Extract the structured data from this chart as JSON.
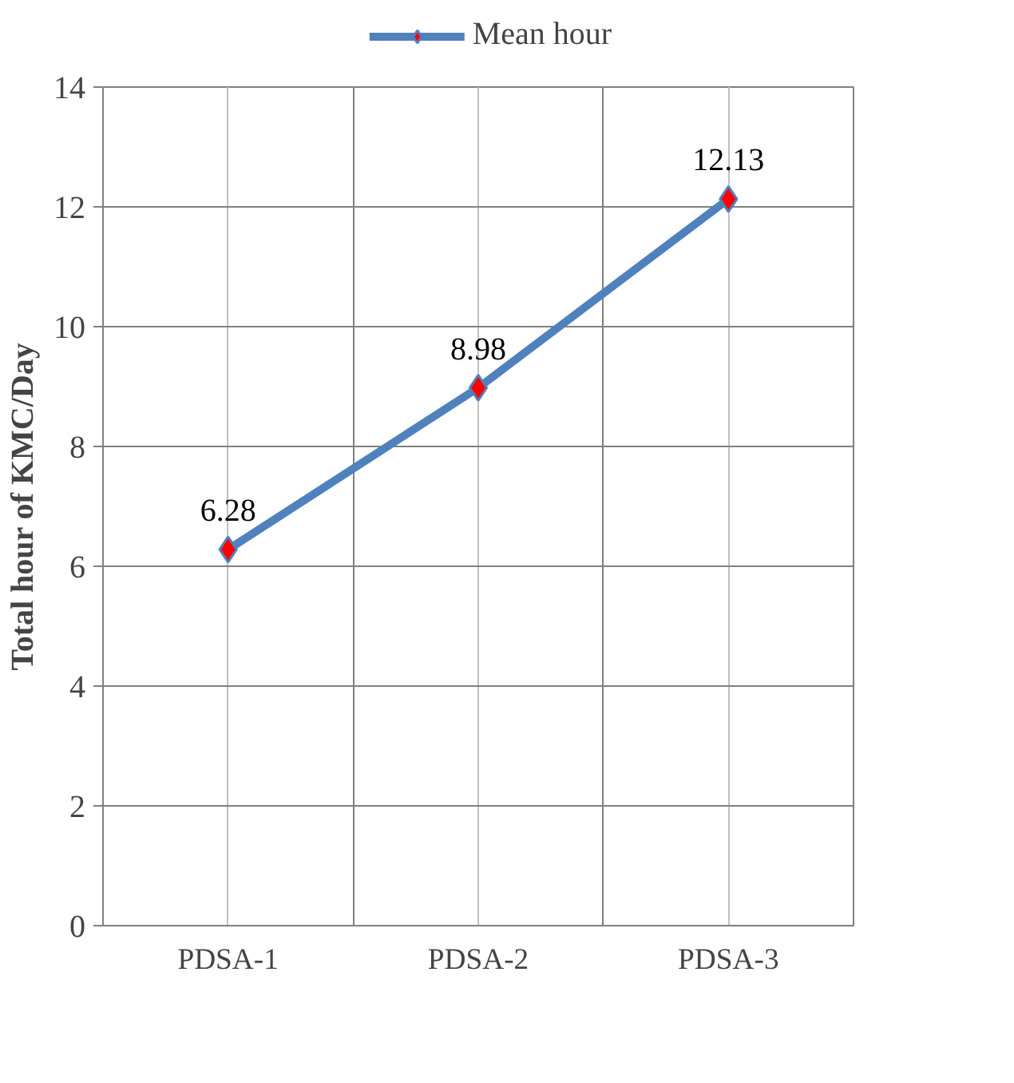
{
  "chart_data": {
    "type": "line",
    "categories": [
      "PDSA-1",
      "PDSA-2",
      "PDSA-3"
    ],
    "series": [
      {
        "name": "Mean hour",
        "color": "#4f81bd",
        "values": [
          6.28,
          8.98,
          12.13
        ]
      }
    ],
    "ylabel": "Total hour of KMC/Day",
    "ylim": [
      0,
      14
    ],
    "yticks": [
      0,
      2,
      4,
      6,
      8,
      10,
      12,
      14
    ],
    "grid": true,
    "legend": "top",
    "marker": "diamond",
    "line_style": "solid",
    "data_labels": true
  }
}
